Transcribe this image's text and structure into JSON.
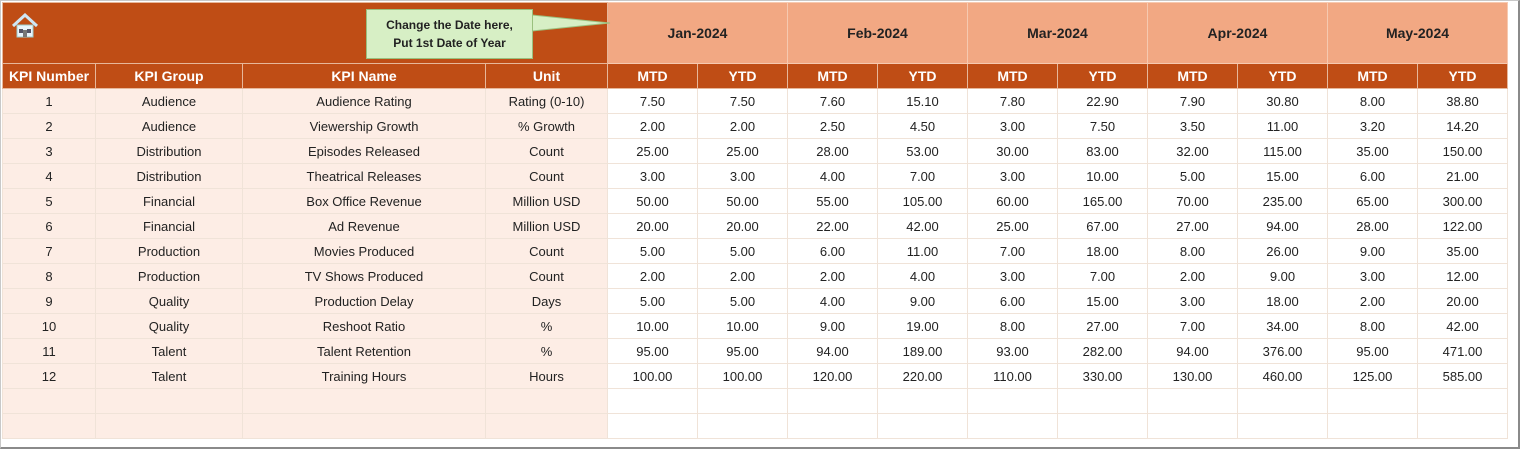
{
  "callout": {
    "line1": "Change the Date here,",
    "line2": "Put 1st Date of Year"
  },
  "icons": {
    "home": "home-icon"
  },
  "months": [
    "Jan-2024",
    "Feb-2024",
    "Mar-2024",
    "Apr-2024",
    "May-2024"
  ],
  "columns": [
    "KPI Number",
    "KPI Group",
    "KPI Name",
    "Unit"
  ],
  "sub_columns": [
    "MTD",
    "YTD"
  ],
  "rows": [
    {
      "num": "1",
      "group": "Audience",
      "name": "Audience Rating",
      "unit": "Rating (0-10)",
      "vals": [
        "7.50",
        "7.50",
        "7.60",
        "15.10",
        "7.80",
        "22.90",
        "7.90",
        "30.80",
        "8.00",
        "38.80"
      ]
    },
    {
      "num": "2",
      "group": "Audience",
      "name": "Viewership Growth",
      "unit": "% Growth",
      "vals": [
        "2.00",
        "2.00",
        "2.50",
        "4.50",
        "3.00",
        "7.50",
        "3.50",
        "11.00",
        "3.20",
        "14.20"
      ]
    },
    {
      "num": "3",
      "group": "Distribution",
      "name": "Episodes Released",
      "unit": "Count",
      "vals": [
        "25.00",
        "25.00",
        "28.00",
        "53.00",
        "30.00",
        "83.00",
        "32.00",
        "115.00",
        "35.00",
        "150.00"
      ]
    },
    {
      "num": "4",
      "group": "Distribution",
      "name": "Theatrical Releases",
      "unit": "Count",
      "vals": [
        "3.00",
        "3.00",
        "4.00",
        "7.00",
        "3.00",
        "10.00",
        "5.00",
        "15.00",
        "6.00",
        "21.00"
      ]
    },
    {
      "num": "5",
      "group": "Financial",
      "name": "Box Office Revenue",
      "unit": "Million USD",
      "vals": [
        "50.00",
        "50.00",
        "55.00",
        "105.00",
        "60.00",
        "165.00",
        "70.00",
        "235.00",
        "65.00",
        "300.00"
      ]
    },
    {
      "num": "6",
      "group": "Financial",
      "name": "Ad Revenue",
      "unit": "Million USD",
      "vals": [
        "20.00",
        "20.00",
        "22.00",
        "42.00",
        "25.00",
        "67.00",
        "27.00",
        "94.00",
        "28.00",
        "122.00"
      ]
    },
    {
      "num": "7",
      "group": "Production",
      "name": "Movies Produced",
      "unit": "Count",
      "vals": [
        "5.00",
        "5.00",
        "6.00",
        "11.00",
        "7.00",
        "18.00",
        "8.00",
        "26.00",
        "9.00",
        "35.00"
      ]
    },
    {
      "num": "8",
      "group": "Production",
      "name": "TV Shows Produced",
      "unit": "Count",
      "vals": [
        "2.00",
        "2.00",
        "2.00",
        "4.00",
        "3.00",
        "7.00",
        "2.00",
        "9.00",
        "3.00",
        "12.00"
      ]
    },
    {
      "num": "9",
      "group": "Quality",
      "name": "Production Delay",
      "unit": "Days",
      "vals": [
        "5.00",
        "5.00",
        "4.00",
        "9.00",
        "6.00",
        "15.00",
        "3.00",
        "18.00",
        "2.00",
        "20.00"
      ]
    },
    {
      "num": "10",
      "group": "Quality",
      "name": "Reshoot Ratio",
      "unit": "%",
      "vals": [
        "10.00",
        "10.00",
        "9.00",
        "19.00",
        "8.00",
        "27.00",
        "7.00",
        "34.00",
        "8.00",
        "42.00"
      ]
    },
    {
      "num": "11",
      "group": "Talent",
      "name": "Talent Retention",
      "unit": "%",
      "vals": [
        "95.00",
        "95.00",
        "94.00",
        "189.00",
        "93.00",
        "282.00",
        "94.00",
        "376.00",
        "95.00",
        "471.00"
      ]
    },
    {
      "num": "12",
      "group": "Talent",
      "name": "Training Hours",
      "unit": "Hours",
      "vals": [
        "100.00",
        "100.00",
        "120.00",
        "220.00",
        "110.00",
        "330.00",
        "130.00",
        "460.00",
        "125.00",
        "585.00"
      ]
    }
  ],
  "empty_rows": 2,
  "colors": {
    "header_dark": "#bf4d15",
    "header_month": "#f2a883",
    "left_fill": "#fdede5",
    "callout": "#d7efc5"
  }
}
